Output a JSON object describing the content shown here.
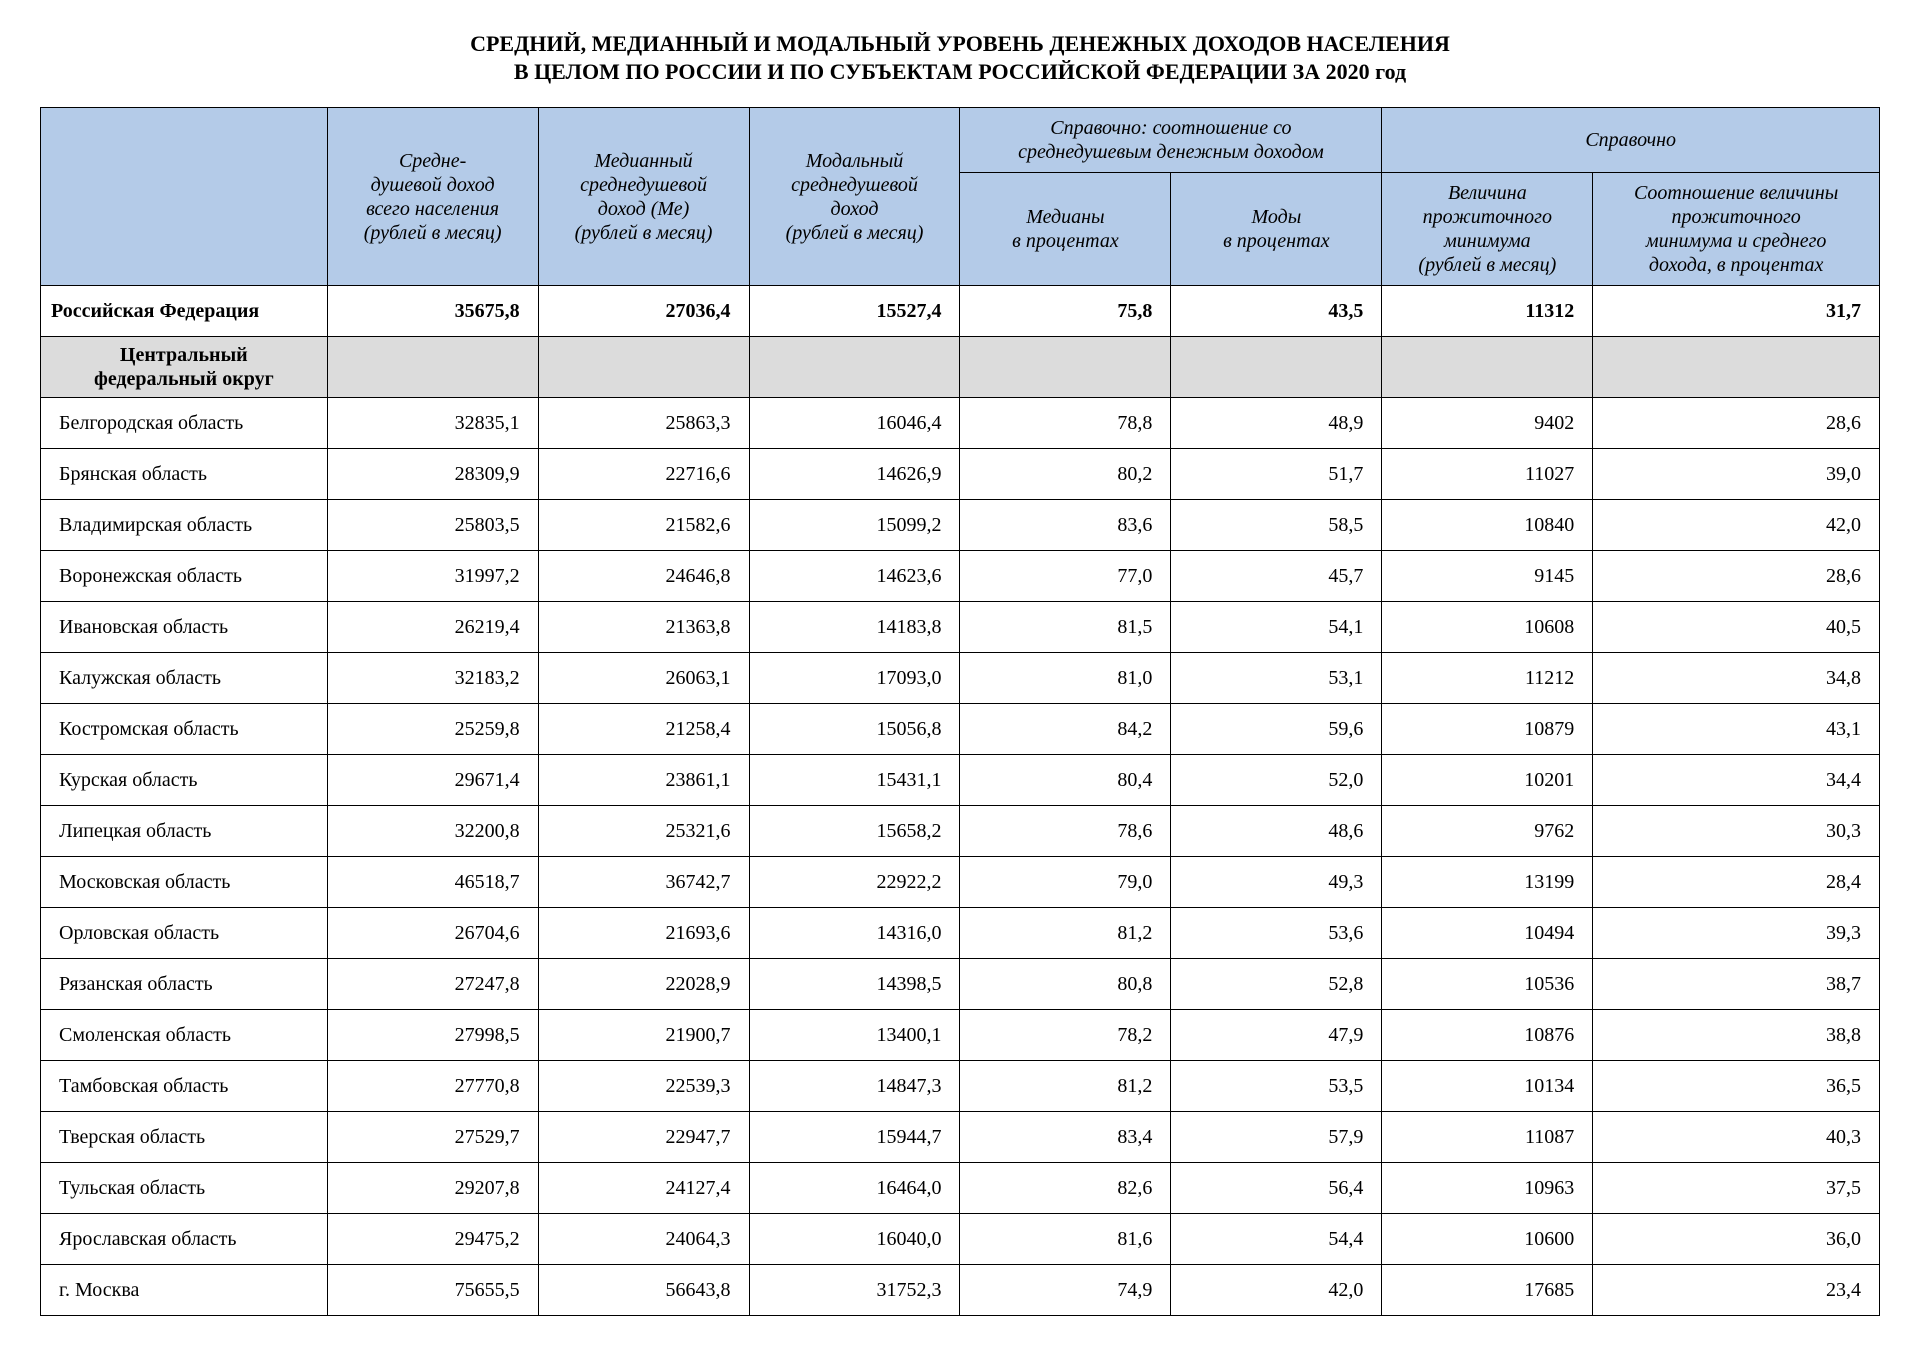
{
  "title": {
    "line1": "СРЕДНИЙ, МЕДИАННЫЙ И МОДАЛЬНЫЙ УРОВЕНЬ ДЕНЕЖНЫХ ДОХОДОВ НАСЕЛЕНИЯ",
    "line2": "В ЦЕЛОМ ПО РОССИИ И ПО СУБЪЕКТАМ РОССИЙСКОЙ ФЕДЕРАЦИИ ЗА 2020 год"
  },
  "colors": {
    "header_bg": "#b4cbe8",
    "district_bg": "#dcdcdc",
    "border": "#000000",
    "text": "#000000",
    "background": "#ffffff"
  },
  "header": {
    "empty": "",
    "col1": "Средне-\nдушевой доход\nвсего населения\n(рублей в месяц)",
    "col2": "Медианный\nсреднедушевой\nдоход (Ме)\n(рублей в месяц)",
    "col3": "Модальный\nсреднедушевой\nдоход\n(рублей в месяц)",
    "group1": "Справочно: соотношение со\nсреднедушевым денежным доходом",
    "col4": "Медианы\nв процентах",
    "col5": "Моды\nв процентах",
    "group2": "Справочно",
    "col6": "Величина\nпрожиточного\nминимума\n(рублей в месяц)",
    "col7": "Соотношение величины\nпрожиточного\nминимума и среднего\nдохода, в процентах"
  },
  "total": {
    "name": "Российская Федерация",
    "v": [
      "35675,8",
      "27036,4",
      "15527,4",
      "75,8",
      "43,5",
      "11312",
      "31,7"
    ]
  },
  "district": {
    "name": "Центральный\nфедеральный округ"
  },
  "rows": [
    {
      "name": "Белгородская область",
      "v": [
        "32835,1",
        "25863,3",
        "16046,4",
        "78,8",
        "48,9",
        "9402",
        "28,6"
      ]
    },
    {
      "name": "Брянская область",
      "v": [
        "28309,9",
        "22716,6",
        "14626,9",
        "80,2",
        "51,7",
        "11027",
        "39,0"
      ]
    },
    {
      "name": "Владимирская область",
      "v": [
        "25803,5",
        "21582,6",
        "15099,2",
        "83,6",
        "58,5",
        "10840",
        "42,0"
      ]
    },
    {
      "name": "Воронежская область",
      "v": [
        "31997,2",
        "24646,8",
        "14623,6",
        "77,0",
        "45,7",
        "9145",
        "28,6"
      ]
    },
    {
      "name": "Ивановская область",
      "v": [
        "26219,4",
        "21363,8",
        "14183,8",
        "81,5",
        "54,1",
        "10608",
        "40,5"
      ]
    },
    {
      "name": "Калужская область",
      "v": [
        "32183,2",
        "26063,1",
        "17093,0",
        "81,0",
        "53,1",
        "11212",
        "34,8"
      ]
    },
    {
      "name": "Костромская область",
      "v": [
        "25259,8",
        "21258,4",
        "15056,8",
        "84,2",
        "59,6",
        "10879",
        "43,1"
      ]
    },
    {
      "name": "Курская область",
      "v": [
        "29671,4",
        "23861,1",
        "15431,1",
        "80,4",
        "52,0",
        "10201",
        "34,4"
      ]
    },
    {
      "name": "Липецкая область",
      "v": [
        "32200,8",
        "25321,6",
        "15658,2",
        "78,6",
        "48,6",
        "9762",
        "30,3"
      ]
    },
    {
      "name": "Московская область",
      "v": [
        "46518,7",
        "36742,7",
        "22922,2",
        "79,0",
        "49,3",
        "13199",
        "28,4"
      ]
    },
    {
      "name": "Орловская область",
      "v": [
        "26704,6",
        "21693,6",
        "14316,0",
        "81,2",
        "53,6",
        "10494",
        "39,3"
      ]
    },
    {
      "name": "Рязанская область",
      "v": [
        "27247,8",
        "22028,9",
        "14398,5",
        "80,8",
        "52,8",
        "10536",
        "38,7"
      ]
    },
    {
      "name": "Смоленская область",
      "v": [
        "27998,5",
        "21900,7",
        "13400,1",
        "78,2",
        "47,9",
        "10876",
        "38,8"
      ]
    },
    {
      "name": "Тамбовская область",
      "v": [
        "27770,8",
        "22539,3",
        "14847,3",
        "81,2",
        "53,5",
        "10134",
        "36,5"
      ]
    },
    {
      "name": "Тверская область",
      "v": [
        "27529,7",
        "22947,7",
        "15944,7",
        "83,4",
        "57,9",
        "11087",
        "40,3"
      ]
    },
    {
      "name": "Тульская область",
      "v": [
        "29207,8",
        "24127,4",
        "16464,0",
        "82,6",
        "56,4",
        "10963",
        "37,5"
      ]
    },
    {
      "name": "Ярославская область",
      "v": [
        "29475,2",
        "24064,3",
        "16040,0",
        "81,6",
        "54,4",
        "10600",
        "36,0"
      ]
    },
    {
      "name": "г. Москва",
      "v": [
        "75655,5",
        "56643,8",
        "31752,3",
        "74,9",
        "42,0",
        "17685",
        "23,4"
      ]
    }
  ]
}
